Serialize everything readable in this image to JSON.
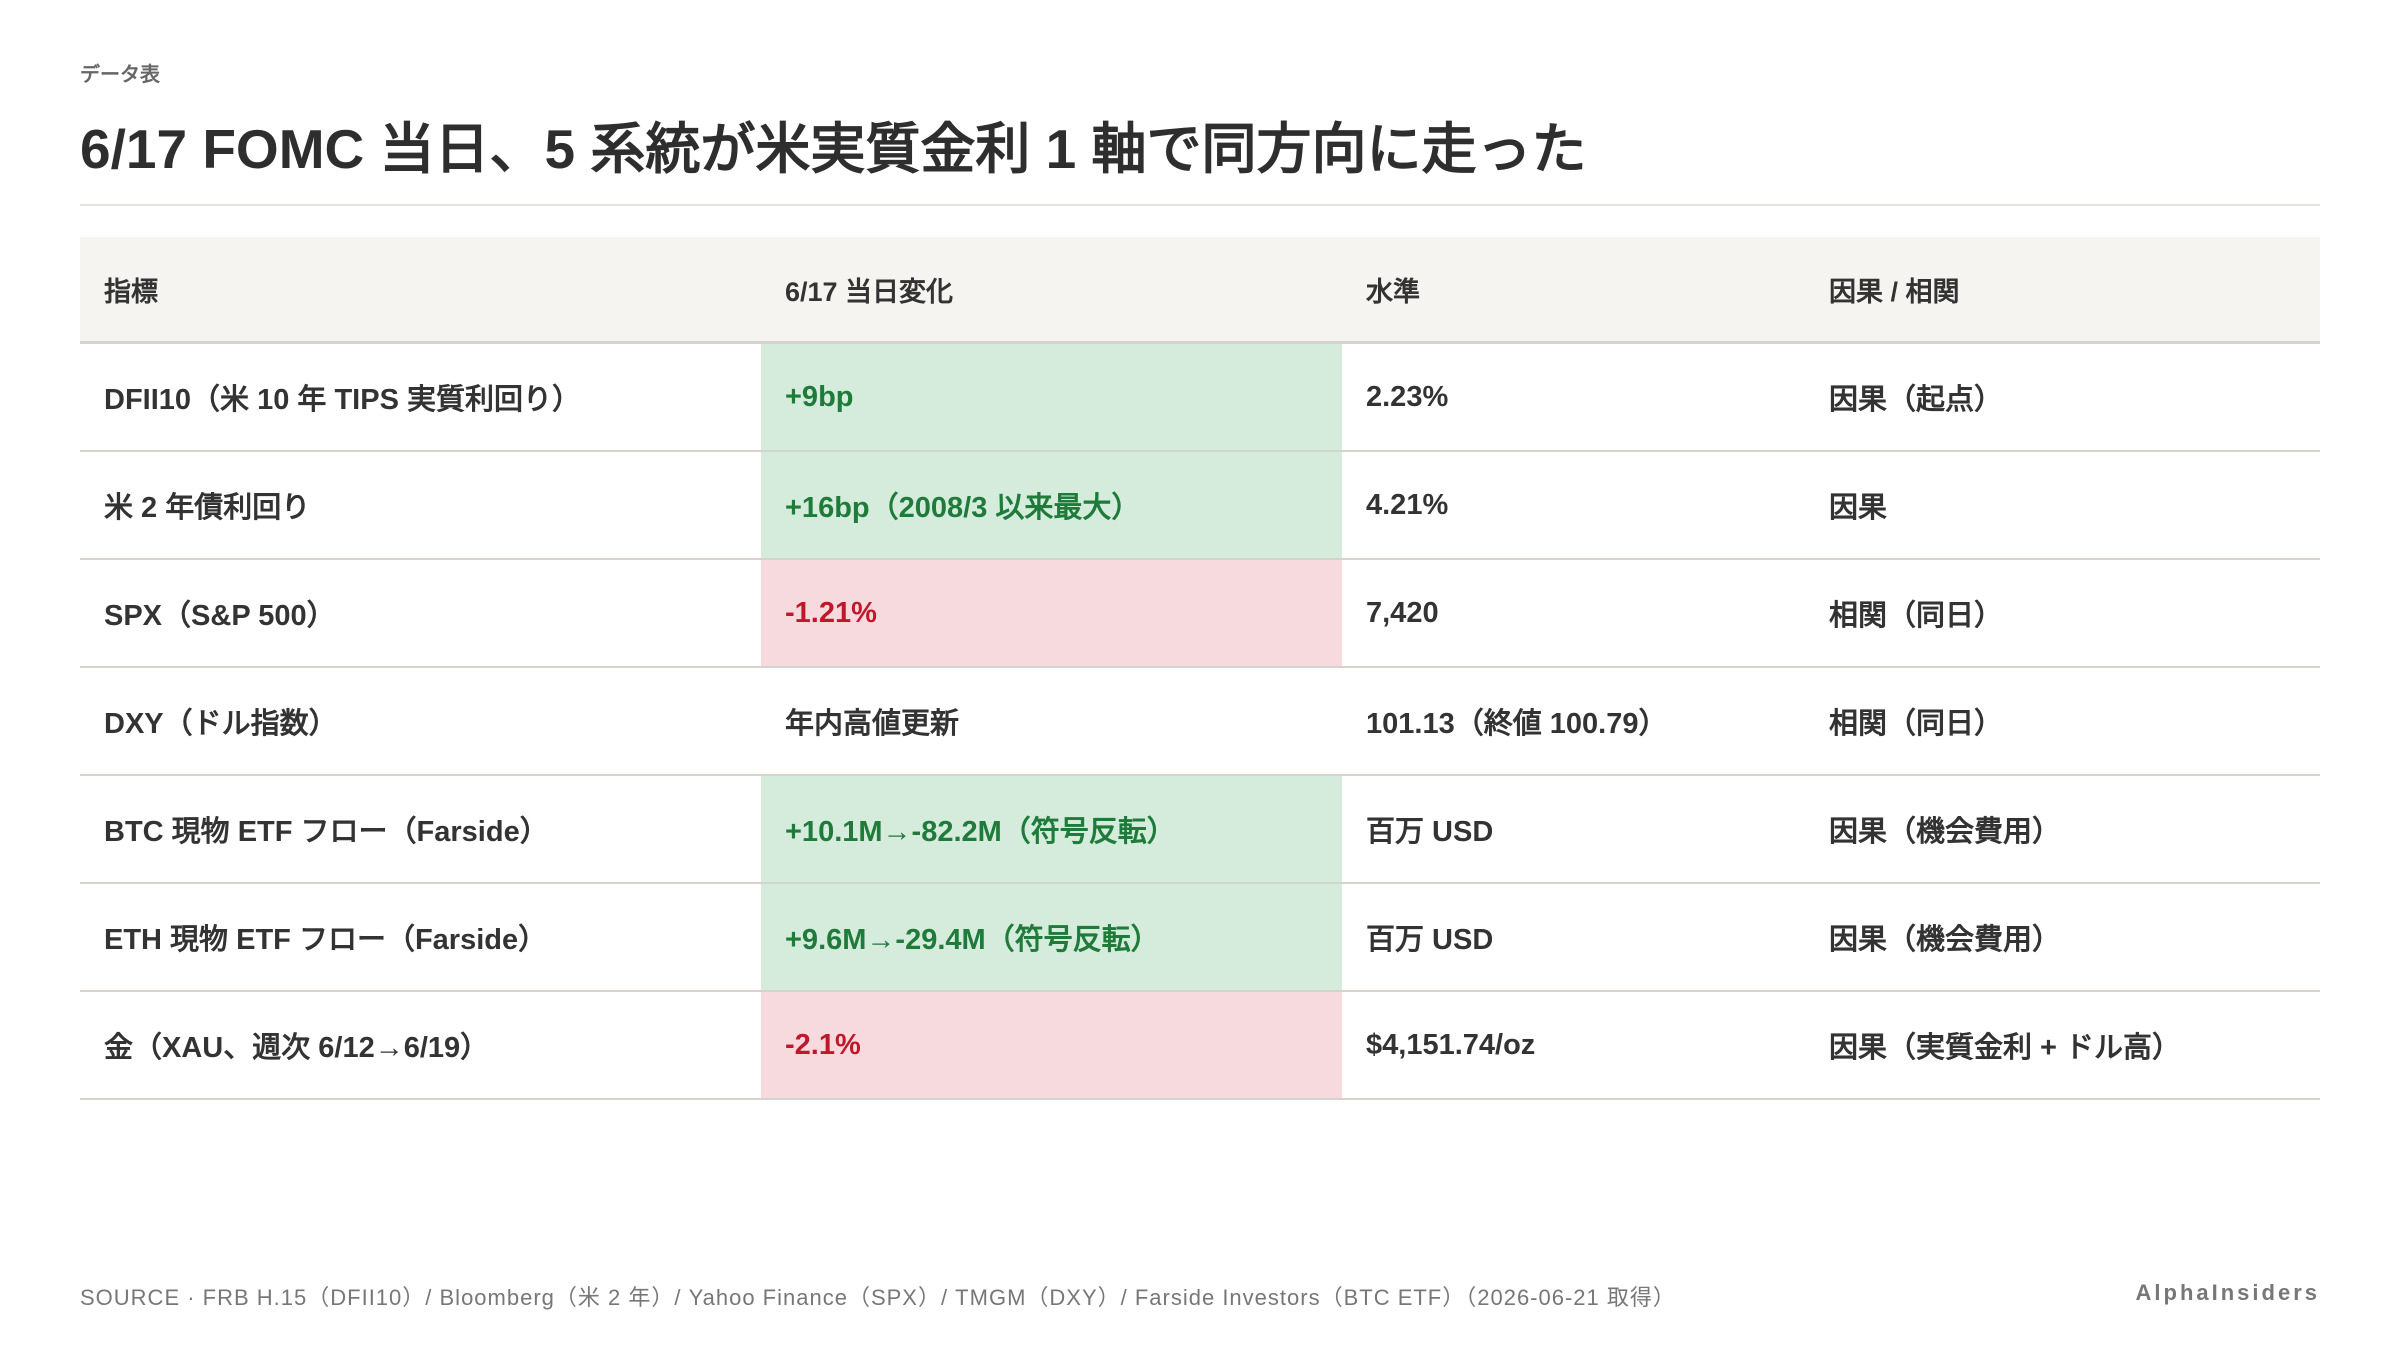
{
  "header": {
    "label": "データ表",
    "title": "6/17 FOMC 当日、5 系統が米実質金利 1 軸で同方向に走った"
  },
  "table": {
    "columns": [
      "指標",
      "6/17 当日変化",
      "水準",
      "因果 / 相関"
    ],
    "rows": [
      {
        "cells": [
          "DFII10（米 10 年 TIPS 実質利回り）",
          "+9bp",
          "2.23%",
          "因果（起点）"
        ],
        "tone": "green"
      },
      {
        "cells": [
          "米 2 年債利回り",
          "+16bp（2008/3 以来最大）",
          "4.21%",
          "因果"
        ],
        "tone": "green"
      },
      {
        "cells": [
          "SPX（S&P 500）",
          "-1.21%",
          "7,420",
          "相関（同日）"
        ],
        "tone": "red"
      },
      {
        "cells": [
          "DXY（ドル指数）",
          "年内高値更新",
          "101.13（終値 100.79）",
          "相関（同日）"
        ],
        "tone": null
      },
      {
        "cells": [
          "BTC 現物 ETF フロー（Farside）",
          "+10.1M→-82.2M（符号反転）",
          "百万 USD",
          "因果（機会費用）"
        ],
        "tone": "green"
      },
      {
        "cells": [
          "ETH 現物 ETF フロー（Farside）",
          "+9.6M→-29.4M（符号反転）",
          "百万 USD",
          "因果（機会費用）"
        ],
        "tone": "green"
      },
      {
        "cells": [
          "金（XAU、週次 6/12→6/19）",
          "-2.1%",
          "$4,151.74/oz",
          "因果（実質金利 + ドル高）"
        ],
        "tone": "red"
      }
    ]
  },
  "footer": {
    "source": "SOURCE · FRB H.15（DFII10）/ Bloomberg（米 2 年）/ Yahoo Finance（SPX）/ TMGM（DXY）/ Farside Investors（BTC ETF）（2026-06-21 取得）",
    "brand": "AlphaInsiders"
  }
}
